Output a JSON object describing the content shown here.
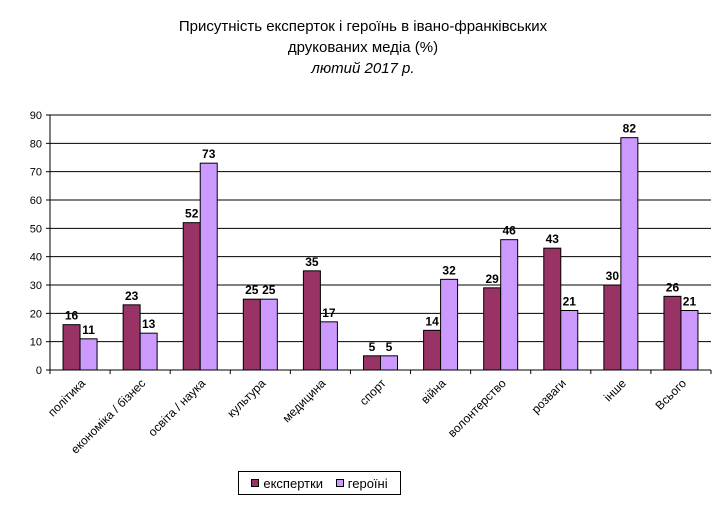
{
  "title": "Присутність експерток і героїнь в івано-франківських друкованих медіа (%)",
  "title_line1": "Присутність експерток і героїнь в івано-франківських",
  "title_line2": "друкованих медіа (%)",
  "subtitle": "лютий 2017 р.",
  "colors": {
    "series1": "#993366",
    "series2": "#CC99FF",
    "grid": "#000000"
  },
  "chart_data": {
    "type": "bar",
    "title": "Присутність експерток і героїнь в івано-франківських друкованих медіа (%)",
    "subtitle": "лютий 2017 р.",
    "categories": [
      "політика",
      "економіка / бізнес",
      "освіта / наука",
      "культура",
      "медицина",
      "спорт",
      "війна",
      "волонтерство",
      "розваги",
      "інше",
      "Всього"
    ],
    "series": [
      {
        "name": "експертки",
        "values": [
          16,
          23,
          52,
          25,
          35,
          5,
          14,
          29,
          43,
          30,
          26
        ]
      },
      {
        "name": "героїні",
        "values": [
          11,
          13,
          73,
          25,
          17,
          5,
          32,
          46,
          21,
          82,
          21
        ]
      }
    ],
    "ylim": [
      0,
      90
    ],
    "yticks": [
      0,
      10,
      20,
      30,
      40,
      50,
      60,
      70,
      80,
      90
    ],
    "grid": true,
    "legend_position": "bottom",
    "data_labels": true
  }
}
